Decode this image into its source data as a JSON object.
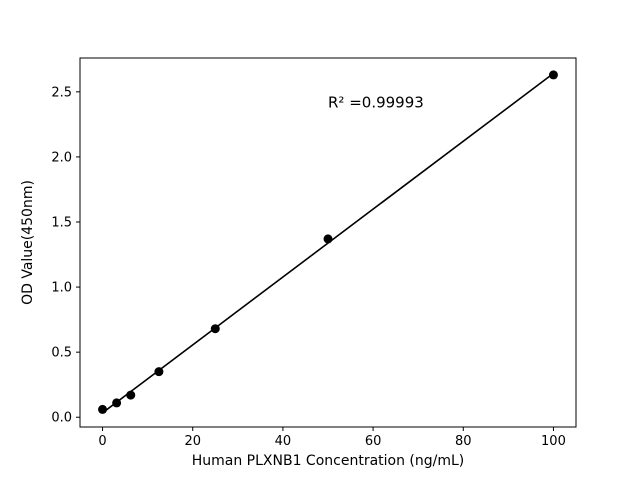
{
  "chart_data": {
    "type": "scatter",
    "title": "",
    "xlabel": "Human PLXNB1 Concentration (ng/mL)",
    "ylabel": "OD Value(450nm)",
    "annotation": "R² =0.99993",
    "annotation_pos": {
      "x": 50,
      "y": 2.38
    },
    "x": [
      0,
      3.125,
      6.25,
      12.5,
      25,
      50,
      100
    ],
    "y": [
      0.06,
      0.11,
      0.17,
      0.35,
      0.68,
      1.37,
      2.63
    ],
    "trendline": {
      "x": [
        0,
        100
      ],
      "y": [
        0.034,
        2.642
      ]
    },
    "xlim": [
      -5,
      105
    ],
    "ylim": [
      -0.075,
      2.76
    ],
    "xticks": [
      0,
      20,
      40,
      60,
      80,
      100
    ],
    "yticks": [
      0.0,
      0.5,
      1.0,
      1.5,
      2.0,
      2.5
    ],
    "grid": false,
    "legend": null,
    "marker_color": "#000000",
    "line_color": "#000000",
    "axis_color": "#000000",
    "background": "#ffffff"
  }
}
